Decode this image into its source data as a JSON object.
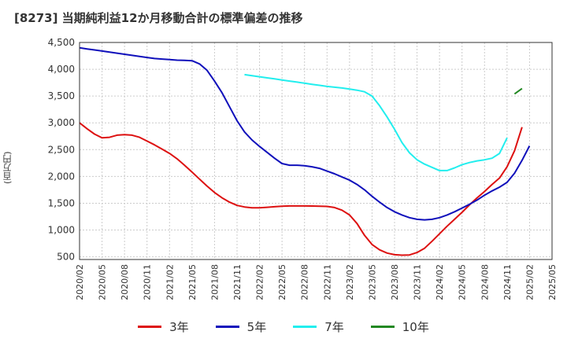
{
  "chart_data": {
    "type": "line",
    "title": "[8273]  当期純利益12か月移動合計の標準偏差の推移",
    "ylabel": "(百万円)",
    "xlabel": "",
    "ylim": [
      450,
      4500
    ],
    "yticks": [
      500,
      1000,
      1500,
      2000,
      2500,
      3000,
      3500,
      4000,
      4500
    ],
    "ytick_labels": [
      "500",
      "1,000",
      "1,500",
      "2,000",
      "2,500",
      "3,000",
      "3,500",
      "4,000",
      "4,500"
    ],
    "xrange": [
      "2020/02",
      "2025/05"
    ],
    "xtick_labels": [
      "2020/02",
      "2020/05",
      "2020/08",
      "2020/11",
      "2021/02",
      "2021/05",
      "2021/08",
      "2021/11",
      "2022/02",
      "2022/05",
      "2022/08",
      "2022/11",
      "2023/02",
      "2023/05",
      "2023/08",
      "2023/11",
      "2024/02",
      "2024/05",
      "2024/08",
      "2024/11",
      "2025/02",
      "2025/05"
    ],
    "grid": true,
    "legend_position": "bottom",
    "series": [
      {
        "name": "3年",
        "color": "#dd1111",
        "start": "2020/02",
        "values": [
          3000,
          2890,
          2790,
          2720,
          2730,
          2770,
          2780,
          2770,
          2730,
          2660,
          2590,
          2510,
          2430,
          2330,
          2210,
          2080,
          1950,
          1820,
          1700,
          1600,
          1520,
          1460,
          1430,
          1415,
          1415,
          1425,
          1435,
          1445,
          1450,
          1450,
          1450,
          1448,
          1445,
          1440,
          1420,
          1370,
          1280,
          1120,
          900,
          730,
          630,
          570,
          540,
          530,
          535,
          580,
          660,
          790,
          930,
          1070,
          1200,
          1330,
          1470,
          1600,
          1720,
          1850,
          1970,
          2180,
          2480,
          2920
        ]
      },
      {
        "name": "5年",
        "color": "#1010bb",
        "start": "2020/02",
        "values": [
          4400,
          4380,
          4360,
          4340,
          4320,
          4300,
          4280,
          4260,
          4240,
          4220,
          4200,
          4190,
          4180,
          4170,
          4165,
          4160,
          4100,
          3980,
          3780,
          3560,
          3300,
          3040,
          2830,
          2680,
          2560,
          2450,
          2340,
          2240,
          2210,
          2210,
          2200,
          2180,
          2150,
          2100,
          2050,
          1990,
          1930,
          1850,
          1750,
          1630,
          1520,
          1420,
          1340,
          1280,
          1230,
          1200,
          1190,
          1200,
          1230,
          1280,
          1340,
          1410,
          1480,
          1560,
          1650,
          1730,
          1800,
          1890,
          2060,
          2300,
          2570
        ]
      },
      {
        "name": "7年",
        "color": "#22eeee",
        "start": "2021/12",
        "values": [
          3900,
          3880,
          3860,
          3840,
          3820,
          3800,
          3780,
          3760,
          3740,
          3720,
          3700,
          3680,
          3665,
          3650,
          3630,
          3610,
          3580,
          3500,
          3320,
          3110,
          2880,
          2630,
          2440,
          2310,
          2230,
          2170,
          2110,
          2110,
          2160,
          2220,
          2260,
          2290,
          2310,
          2340,
          2430,
          2720
        ]
      },
      {
        "name": "10年",
        "color": "#228822",
        "start": "2024/12",
        "values": [
          3540,
          3640
        ]
      }
    ]
  }
}
